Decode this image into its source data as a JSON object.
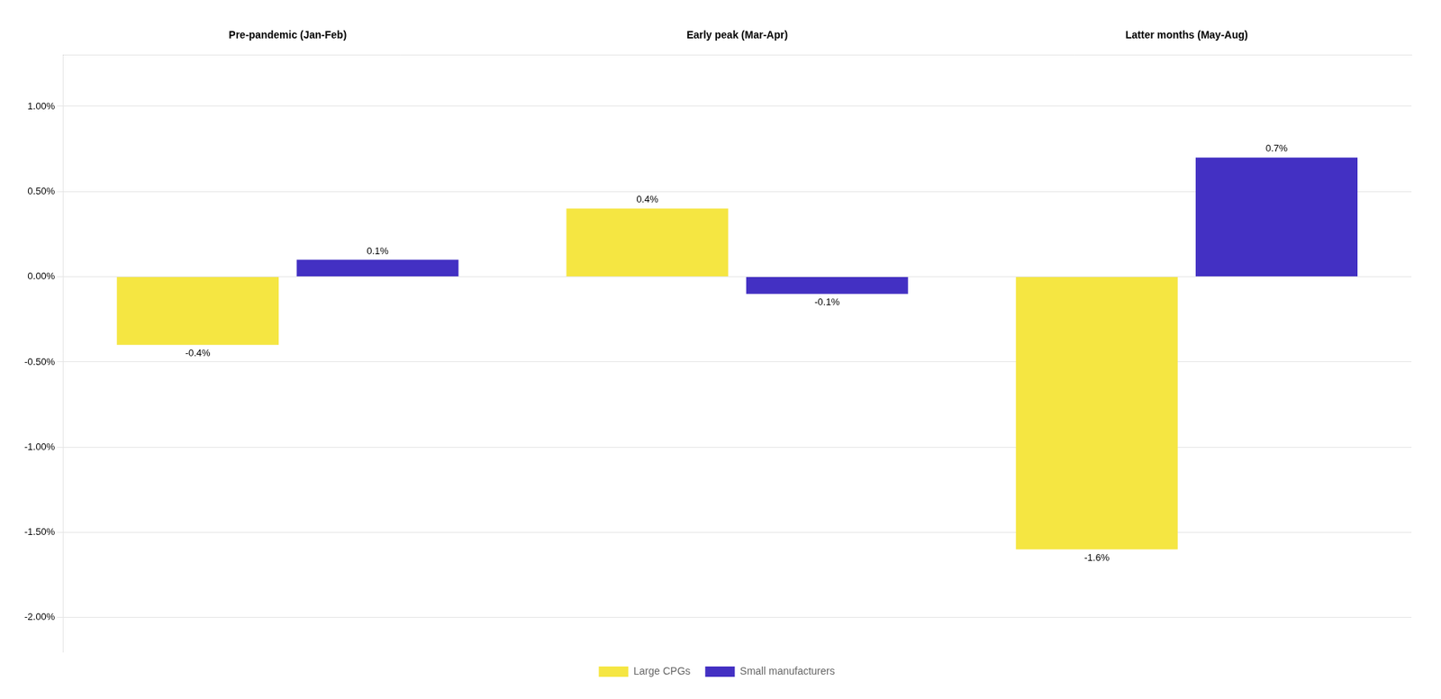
{
  "chart_data": {
    "type": "bar",
    "categories": [
      "Pre-pandemic (Jan-Feb)",
      "Early peak (Mar-Apr)",
      "Latter months (May-Aug)"
    ],
    "series": [
      {
        "name": "Large CPGs",
        "color": "#F5E642",
        "values": [
          -0.004,
          0.004,
          -0.016
        ],
        "value_labels": [
          "-0.4%",
          "0.4%",
          "-1.6%"
        ]
      },
      {
        "name": "Small manufacturers",
        "color": "#4330C3",
        "values": [
          0.001,
          -0.001,
          0.007
        ],
        "value_labels": [
          "0.1%",
          "-0.1%",
          "0.7%"
        ]
      }
    ],
    "ylim": [
      -0.022,
      0.013
    ],
    "yticks": [
      {
        "value": -0.02,
        "label": "-2.00%"
      },
      {
        "value": -0.015,
        "label": "-1.50%"
      },
      {
        "value": -0.01,
        "label": "-1.00%"
      },
      {
        "value": -0.005,
        "label": "-0.50%"
      },
      {
        "value": 0.0,
        "label": "0.00%"
      },
      {
        "value": 0.005,
        "label": "0.50%"
      },
      {
        "value": 0.01,
        "label": "1.00%"
      }
    ],
    "grid": true,
    "legend": "bottom",
    "data_labels": true
  }
}
